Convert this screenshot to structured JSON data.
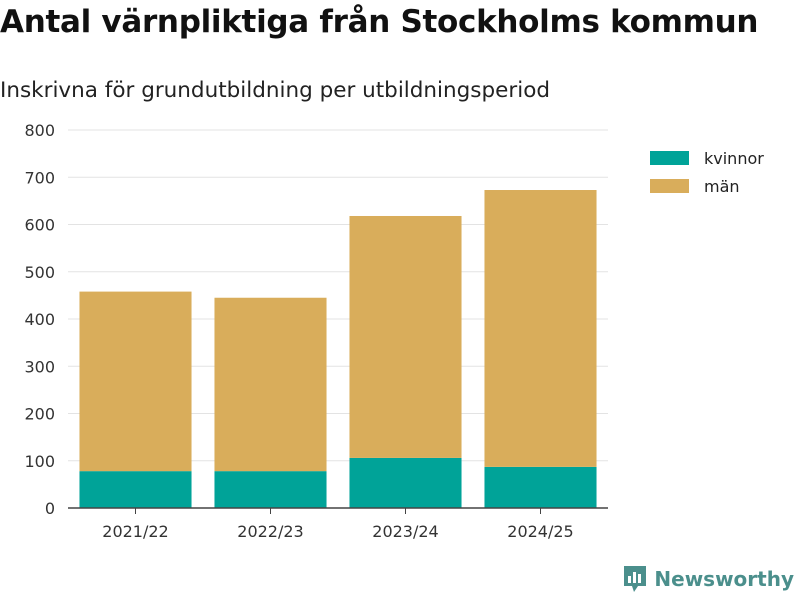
{
  "chart_data": {
    "type": "bar",
    "stacked": true,
    "title": "Antal värnpliktiga från Stockholms kommun",
    "subtitle": "Inskrivna för grundutbildning per utbildningsperiod",
    "categories": [
      "2021/22",
      "2022/23",
      "2023/24",
      "2024/25"
    ],
    "series": [
      {
        "name": "kvinnor",
        "color": "#00a398",
        "values": [
          78,
          78,
          106,
          87
        ]
      },
      {
        "name": "män",
        "color": "#d9ad5b",
        "values": [
          380,
          367,
          512,
          586
        ]
      }
    ],
    "ylim": [
      0,
      800
    ],
    "yticks": [
      0,
      100,
      200,
      300,
      400,
      500,
      600,
      700,
      800
    ],
    "grid": true,
    "legend": "top-right"
  },
  "brand": {
    "name": "Newsworthy",
    "icon": "newsworthy-logo-icon",
    "color": "#4b8f8c"
  }
}
